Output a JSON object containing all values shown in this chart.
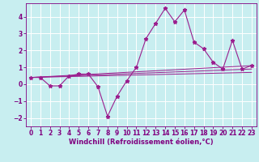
{
  "title": "",
  "xlabel": "Windchill (Refroidissement éolien,°C)",
  "ylabel": "",
  "bg_color": "#c8eef0",
  "grid_color": "#ffffff",
  "line_color": "#9b1e8e",
  "x_data": [
    0,
    1,
    2,
    3,
    4,
    5,
    6,
    7,
    8,
    9,
    10,
    11,
    12,
    13,
    14,
    15,
    16,
    17,
    18,
    19,
    20,
    21,
    22,
    23
  ],
  "y_data": [
    0.4,
    0.4,
    -0.1,
    -0.1,
    0.5,
    0.6,
    0.6,
    -0.15,
    -1.9,
    -0.7,
    0.2,
    1.0,
    2.7,
    3.6,
    4.5,
    3.7,
    4.4,
    2.5,
    2.1,
    1.3,
    0.9,
    2.6,
    0.9,
    1.1
  ],
  "xlim": [
    -0.5,
    23.5
  ],
  "ylim": [
    -2.5,
    4.8
  ],
  "yticks": [
    -2,
    -1,
    0,
    1,
    2,
    3,
    4
  ],
  "xticks": [
    0,
    1,
    2,
    3,
    4,
    5,
    6,
    7,
    8,
    9,
    10,
    11,
    12,
    13,
    14,
    15,
    16,
    17,
    18,
    19,
    20,
    21,
    22,
    23
  ],
  "trend_x": [
    0,
    23
  ],
  "trend_y": [
    0.4,
    1.1
  ],
  "trend2_x": [
    0,
    23
  ],
  "trend2_y": [
    0.4,
    0.9
  ],
  "trend3_x": [
    0,
    23
  ],
  "trend3_y": [
    0.4,
    0.7
  ],
  "xlabel_fontsize": 6.0,
  "tick_fontsize": 5.5,
  "label_color": "#800080"
}
